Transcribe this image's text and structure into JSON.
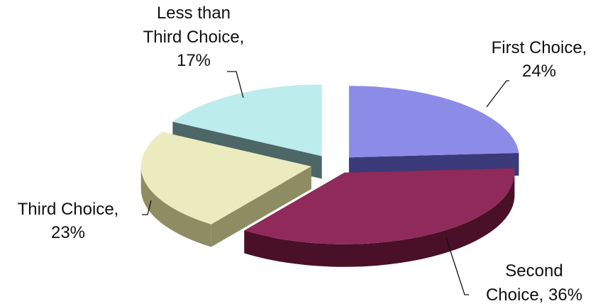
{
  "chart_data": {
    "type": "pie",
    "style": "3d-exploded",
    "slices": [
      {
        "label_lines": [
          "First Choice,",
          "24%"
        ],
        "name": "First Choice",
        "value": 24,
        "top_color": "#8c8ce8",
        "side_color": "#3a3a7a"
      },
      {
        "label_lines": [
          "Second",
          "Choice, 36%"
        ],
        "name": "Second Choice",
        "value": 36,
        "top_color": "#8f2a5a",
        "side_color": "#4a1028"
      },
      {
        "label_lines": [
          "Third Choice,",
          "23%"
        ],
        "name": "Third Choice",
        "value": 23,
        "top_color": "#ecebbf",
        "side_color": "#8e8c62"
      },
      {
        "label_lines": [
          "Less than",
          "Third Choice,",
          "17%"
        ],
        "name": "Less than Third Choice",
        "value": 17,
        "top_color": "#bdeced",
        "side_color": "#4d6666"
      }
    ]
  }
}
